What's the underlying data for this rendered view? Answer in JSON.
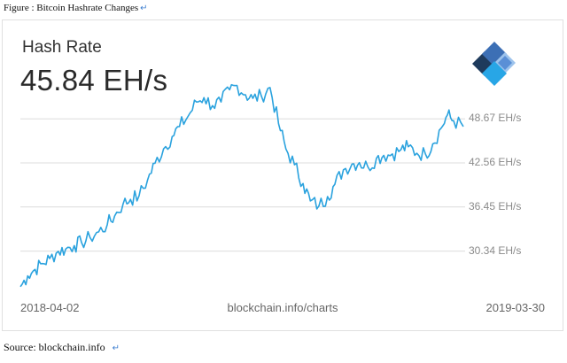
{
  "caption": "Figure : Bitcoin Hashrate Changes",
  "source": "Source: blockchain.info",
  "return_mark": "↵",
  "card": {
    "title": "Hash Rate",
    "value": "45.84 EH/s",
    "footer_left": "2018-04-02",
    "footer_center": "blockchain.info/charts",
    "footer_right": "2019-03-30"
  },
  "colors": {
    "line": "#2aa2de",
    "grid": "#dcdcdc",
    "logo_dark": "#1e3a5c",
    "logo_mid": "#3c6fb5",
    "logo_light": "#5a8fd6",
    "logo_sky": "#28a6e6",
    "logo_pale": "#9dc3ec"
  },
  "icons": [
    "blockchain-logo-icon"
  ],
  "chart_data": {
    "type": "line",
    "title": "Hash Rate",
    "xlabel": "",
    "ylabel": "",
    "x_range": [
      "2018-04-02",
      "2019-03-30"
    ],
    "y_ticks": [
      30.34,
      36.45,
      42.56,
      48.67
    ],
    "y_tick_labels": [
      "30.34 EH/s",
      "36.45 EH/s",
      "42.56 EH/s",
      "48.67 EH/s"
    ],
    "ylim": [
      25.5,
      52.5
    ],
    "grid": true,
    "series": [
      {
        "values": [
          [
            "2018-04-02",
            25.4
          ],
          [
            "2018-04-08",
            26.9
          ],
          [
            "2018-04-14",
            27.8
          ],
          [
            "2018-04-20",
            28.6
          ],
          [
            "2018-04-26",
            29.3
          ],
          [
            "2018-05-03",
            30.3
          ],
          [
            "2018-05-09",
            30.6
          ],
          [
            "2018-05-16",
            31.1
          ],
          [
            "2018-05-22",
            31.5
          ],
          [
            "2018-05-29",
            32.2
          ],
          [
            "2018-06-05",
            33.0
          ],
          [
            "2018-06-12",
            34.0
          ],
          [
            "2018-06-18",
            35.2
          ],
          [
            "2018-06-25",
            36.9
          ],
          [
            "2018-07-01",
            37.5
          ],
          [
            "2018-07-08",
            38.0
          ],
          [
            "2018-07-15",
            40.2
          ],
          [
            "2018-07-21",
            42.5
          ],
          [
            "2018-07-28",
            44.5
          ],
          [
            "2018-08-04",
            46.2
          ],
          [
            "2018-08-10",
            47.6
          ],
          [
            "2018-08-17",
            49.0
          ],
          [
            "2018-08-24",
            51.0
          ],
          [
            "2018-08-30",
            51.6
          ],
          [
            "2018-09-06",
            50.5
          ],
          [
            "2018-09-13",
            51.0
          ],
          [
            "2018-09-20",
            52.7
          ],
          [
            "2018-09-26",
            53.3
          ],
          [
            "2018-10-03",
            52.0
          ],
          [
            "2018-10-09",
            51.5
          ],
          [
            "2018-10-16",
            51.8
          ],
          [
            "2018-10-23",
            53.0
          ],
          [
            "2018-10-30",
            48.0
          ],
          [
            "2018-11-05",
            44.5
          ],
          [
            "2018-11-12",
            42.3
          ],
          [
            "2018-11-19",
            39.7
          ],
          [
            "2018-11-25",
            37.3
          ],
          [
            "2018-12-02",
            36.6
          ],
          [
            "2018-12-09",
            37.9
          ],
          [
            "2018-12-15",
            39.6
          ],
          [
            "2018-12-22",
            41.6
          ],
          [
            "2018-12-29",
            42.4
          ],
          [
            "2019-01-04",
            42.6
          ],
          [
            "2019-01-11",
            42.0
          ],
          [
            "2019-01-18",
            43.2
          ],
          [
            "2019-01-24",
            43.6
          ],
          [
            "2019-01-31",
            43.8
          ],
          [
            "2019-02-07",
            44.4
          ],
          [
            "2019-02-13",
            44.8
          ],
          [
            "2019-02-20",
            43.9
          ],
          [
            "2019-02-27",
            43.8
          ],
          [
            "2019-03-05",
            45.2
          ],
          [
            "2019-03-12",
            47.4
          ],
          [
            "2019-03-17",
            49.2
          ],
          [
            "2019-03-22",
            48.4
          ],
          [
            "2019-03-30",
            47.6
          ]
        ]
      }
    ]
  }
}
